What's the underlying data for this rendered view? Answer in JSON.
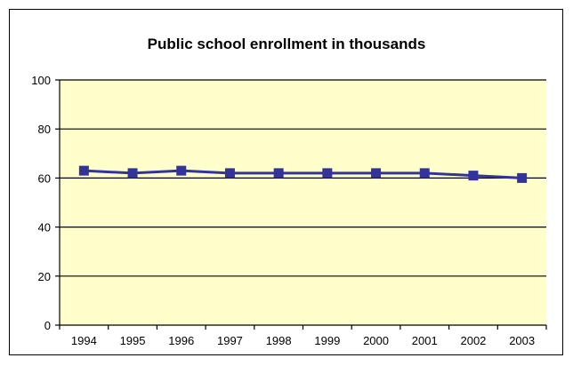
{
  "chart_data": {
    "type": "line",
    "title": "Public school enrollment in thousands",
    "xlabel": "",
    "ylabel": "",
    "categories": [
      "1994",
      "1995",
      "1996",
      "1997",
      "1998",
      "1999",
      "2000",
      "2001",
      "2002",
      "2003"
    ],
    "series": [
      {
        "values": [
          63,
          62,
          63,
          62,
          62,
          62,
          62,
          62,
          61,
          60
        ]
      }
    ],
    "ylim": [
      0,
      100
    ],
    "yticks": [
      0,
      20,
      40,
      60,
      80,
      100
    ],
    "grid": true,
    "legend": "none",
    "colors": {
      "plot_background": "#ffffcc",
      "series": "#333399",
      "gridline": "#000000",
      "axis": "#000000"
    }
  }
}
